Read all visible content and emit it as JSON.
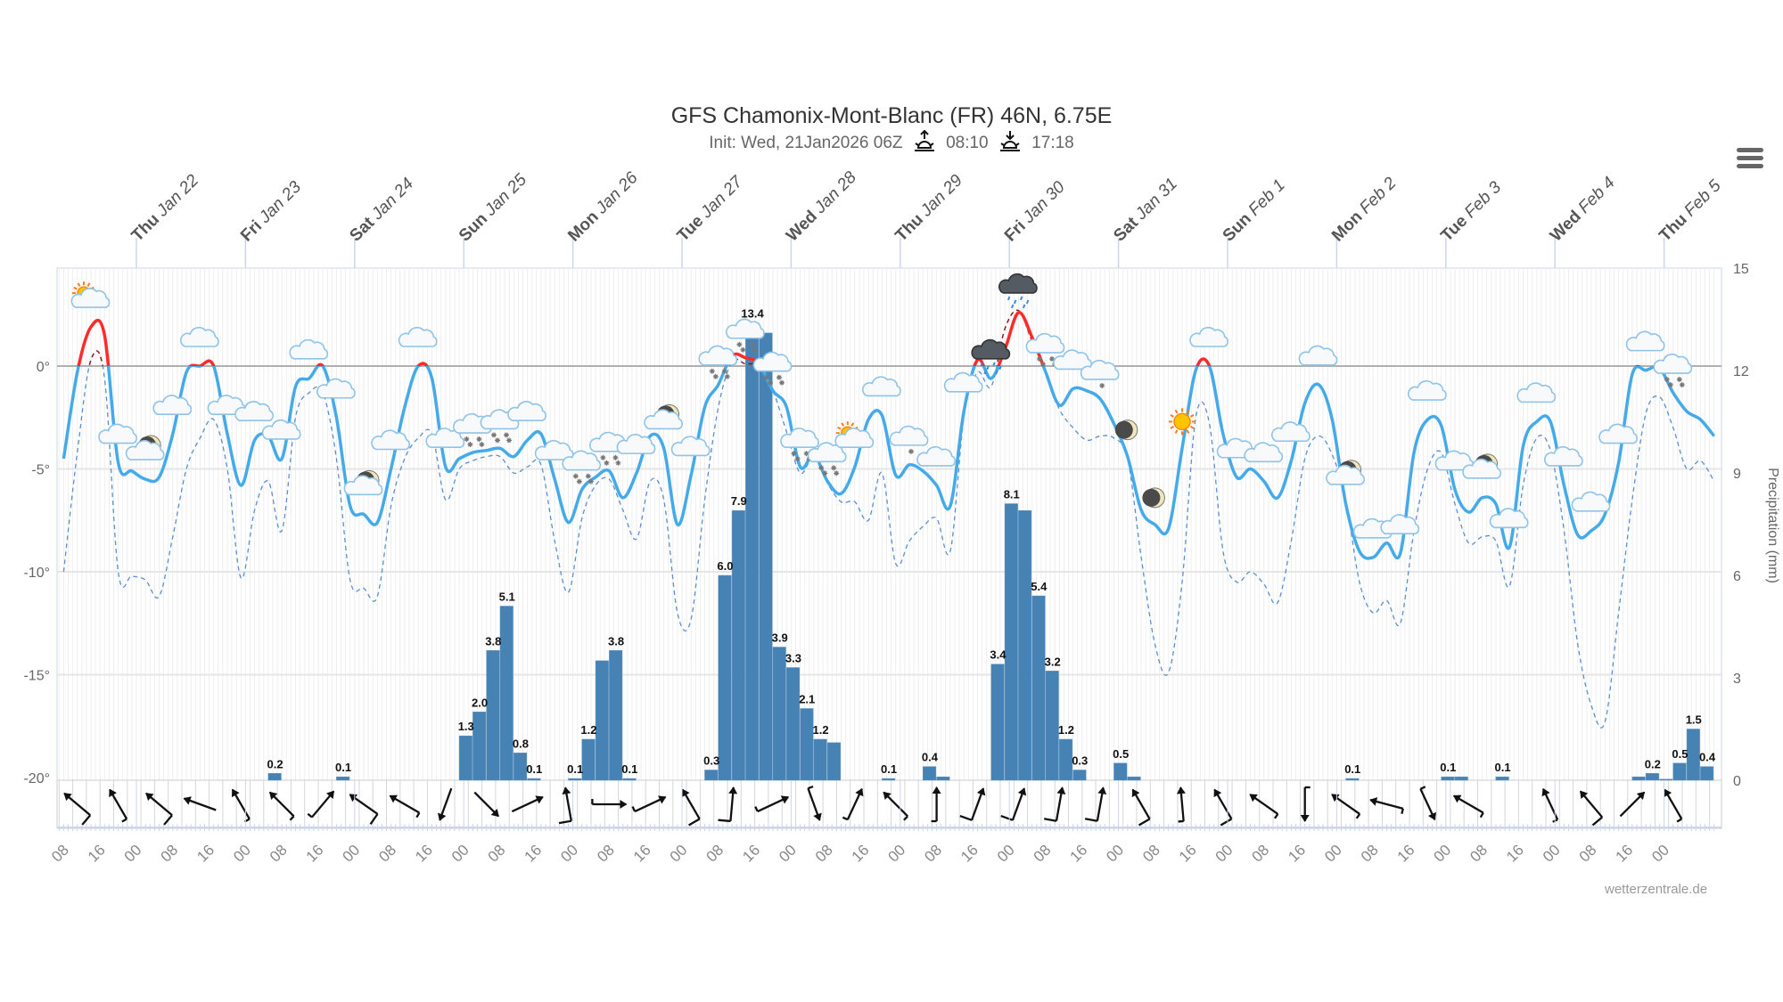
{
  "header": {
    "title": "GFS Chamonix-Mont-Blanc (FR) 46N, 6.75E",
    "init": "Init: Wed, 21Jan2026 06Z",
    "sunrise": "08:10",
    "sunset": "17:18",
    "menu_icon": "hamburger-menu-icon"
  },
  "credit": "wetterzentrale.de",
  "chart_data": {
    "type": "line",
    "title": "GFS Chamonix-Mont-Blanc (FR) 46N, 6.75E",
    "x": {
      "start": "2026-01-21T08:00",
      "step_hours": 3
    },
    "y_left": {
      "ticks": [
        "0°",
        "-5°",
        "-10°",
        "-15°",
        "-20°"
      ],
      "tick_values": [
        0,
        -5,
        -10,
        -15,
        -20
      ],
      "ylim": [
        -20,
        4.7
      ]
    },
    "y_right": {
      "label": "Precipitation (mm)",
      "ticks": [
        "15",
        "12",
        "9",
        "6",
        "3",
        "0"
      ],
      "tick_values": [
        15,
        12,
        9,
        6,
        3,
        0
      ],
      "ylim": [
        0,
        15
      ]
    },
    "grid": true,
    "colors": {
      "temp": "#45aaea",
      "temp_above_zero": "#ff2a2a",
      "dashed": "#5b8fcf",
      "dashed_above_zero": "#8b1a1a",
      "precip": "#4682b4"
    },
    "series": [
      {
        "style": "solid",
        "values": [
          -4.5,
          -0.3,
          1.9,
          1.5,
          -4.7,
          -5.1,
          -5.5,
          -5.4,
          -3.3,
          -0.3,
          0.0,
          0.0,
          -3.3,
          -5.8,
          -3.6,
          -3.4,
          -4.5,
          -1.0,
          -0.6,
          0.0,
          -2.5,
          -6.8,
          -7.2,
          -7.6,
          -5.0,
          -2.0,
          0.0,
          -0.6,
          -4.9,
          -4.5,
          -4.2,
          -4.1,
          -4.0,
          -4.4,
          -3.6,
          -3.3,
          -5.5,
          -7.6,
          -6.0,
          -5.4,
          -5.1,
          -6.4,
          -5.2,
          -3.4,
          -4.0,
          -7.7,
          -5.3,
          -2.0,
          -0.9,
          0.5,
          0.4,
          0.1,
          -1.2,
          -2.0,
          -4.9,
          -4.3,
          -5.6,
          -6.2,
          -4.9,
          -2.6,
          -2.4,
          -5.3,
          -4.8,
          -5.1,
          -5.8,
          -6.8,
          -2.2,
          0.3,
          -0.6,
          0.8,
          2.6,
          1.4,
          -0.3,
          -1.9,
          -1.1,
          -1.2,
          -1.6,
          -2.8,
          -4.4,
          -7.0,
          -7.7,
          -7.9,
          -4.0,
          -0.2,
          0.0,
          -3.3,
          -5.4,
          -5.0,
          -5.6,
          -6.4,
          -4.6,
          -1.8,
          -0.9,
          -2.6,
          -6.7,
          -9.0,
          -9.3,
          -8.6,
          -9.1,
          -4.2,
          -2.6,
          -2.9,
          -6.0,
          -7.1,
          -6.4,
          -6.7,
          -8.8,
          -3.9,
          -2.7,
          -2.7,
          -5.8,
          -8.2,
          -8.0,
          -7.2,
          -4.7,
          -0.4,
          -0.2,
          -0.1,
          -1.3,
          -2.2,
          -2.6,
          -3.4
        ]
      },
      {
        "style": "dashed",
        "values": [
          -10.0,
          -4.2,
          0.3,
          -0.6,
          -10.0,
          -10.2,
          -10.4,
          -11.2,
          -8.3,
          -5.0,
          -3.5,
          -2.6,
          -5.0,
          -10.3,
          -7.0,
          -5.6,
          -8.0,
          -2.5,
          -1.3,
          -1.3,
          -4.5,
          -10.4,
          -10.8,
          -11.2,
          -6.8,
          -4.5,
          -3.5,
          -3.3,
          -6.5,
          -5.0,
          -4.6,
          -4.4,
          -4.4,
          -5.2,
          -4.9,
          -4.8,
          -8.5,
          -11.0,
          -7.4,
          -5.8,
          -5.5,
          -7.0,
          -8.4,
          -5.6,
          -6.5,
          -12.0,
          -12.3,
          -6.5,
          -2.0,
          0.2,
          0.1,
          0.0,
          -1.2,
          -3.2,
          -5.2,
          -4.4,
          -5.7,
          -6.6,
          -6.6,
          -7.5,
          -5.2,
          -9.6,
          -8.5,
          -7.8,
          -7.4,
          -9.0,
          -2.5,
          -0.3,
          -1.0,
          1.8,
          2.7,
          1.2,
          -0.3,
          -2.1,
          -3.0,
          -3.6,
          -3.4,
          -3.5,
          -4.5,
          -9.3,
          -13.5,
          -14.9,
          -10.5,
          -2.5,
          -2.8,
          -9.0,
          -10.5,
          -10.0,
          -10.6,
          -11.5,
          -8.5,
          -4.5,
          -3.4,
          -4.3,
          -6.5,
          -10.5,
          -12.0,
          -11.4,
          -12.5,
          -8.0,
          -5.0,
          -4.2,
          -6.7,
          -8.6,
          -8.3,
          -8.5,
          -10.7,
          -5.8,
          -3.5,
          -4.1,
          -8.0,
          -13.5,
          -16.5,
          -17.3,
          -12.0,
          -6.5,
          -2.3,
          -1.5,
          -3.0,
          -5.0,
          -4.6,
          -5.6
        ]
      }
    ],
    "precipitation": [
      {
        "t": "2026-01-23T05:00",
        "mm": 0.2,
        "label": "0.2"
      },
      {
        "t": "2026-01-23T20:00",
        "mm": 0.1,
        "label": "0.1"
      },
      {
        "t": "2026-01-24T23:00",
        "mm": 1.3,
        "label": "1.3"
      },
      {
        "t": "2026-01-25T02:00",
        "mm": 2.0,
        "label": "2.0"
      },
      {
        "t": "2026-01-25T05:00",
        "mm": 3.8,
        "label": "3.8"
      },
      {
        "t": "2026-01-25T08:00",
        "mm": 5.1,
        "label": "5.1"
      },
      {
        "t": "2026-01-25T11:00",
        "mm": 0.8,
        "label": "0.8"
      },
      {
        "t": "2026-01-25T14:00",
        "mm": 0.05,
        "label": "0.1"
      },
      {
        "t": "2026-01-25T23:00",
        "mm": 0.05,
        "label": "0.1"
      },
      {
        "t": "2026-01-26T02:00",
        "mm": 1.2,
        "label": "1.2"
      },
      {
        "t": "2026-01-26T05:00",
        "mm": 3.5
      },
      {
        "t": "2026-01-26T08:00",
        "mm": 3.8,
        "label": "3.8"
      },
      {
        "t": "2026-01-26T11:00",
        "mm": 0.05,
        "label": "0.1"
      },
      {
        "t": "2026-01-27T05:00",
        "mm": 0.3,
        "label": "0.3"
      },
      {
        "t": "2026-01-27T08:00",
        "mm": 6.0,
        "label": "6.0"
      },
      {
        "t": "2026-01-27T11:00",
        "mm": 7.9,
        "label": "7.9"
      },
      {
        "t": "2026-01-27T14:00",
        "mm": 13.4,
        "label": "13.4"
      },
      {
        "t": "2026-01-27T17:00",
        "mm": 13.1
      },
      {
        "t": "2026-01-27T20:00",
        "mm": 3.9,
        "label": "3.9"
      },
      {
        "t": "2026-01-27T23:00",
        "mm": 3.3,
        "label": "3.3"
      },
      {
        "t": "2026-01-28T02:00",
        "mm": 2.1,
        "label": "2.1"
      },
      {
        "t": "2026-01-28T05:00",
        "mm": 1.2,
        "label": "1.2"
      },
      {
        "t": "2026-01-28T08:00",
        "mm": 1.1
      },
      {
        "t": "2026-01-28T20:00",
        "mm": 0.05,
        "label": "0.1"
      },
      {
        "t": "2026-01-29T05:00",
        "mm": 0.4,
        "label": "0.4"
      },
      {
        "t": "2026-01-29T08:00",
        "mm": 0.1
      },
      {
        "t": "2026-01-29T20:00",
        "mm": 3.4,
        "label": "3.4"
      },
      {
        "t": "2026-01-29T23:00",
        "mm": 8.1,
        "label": "8.1"
      },
      {
        "t": "2026-01-30T02:00",
        "mm": 7.9
      },
      {
        "t": "2026-01-30T05:00",
        "mm": 5.4,
        "label": "5.4"
      },
      {
        "t": "2026-01-30T08:00",
        "mm": 3.2,
        "label": "3.2"
      },
      {
        "t": "2026-01-30T11:00",
        "mm": 1.2,
        "label": "1.2"
      },
      {
        "t": "2026-01-30T14:00",
        "mm": 0.3,
        "label": "0.3"
      },
      {
        "t": "2026-01-30T23:00",
        "mm": 0.5,
        "label": "0.5"
      },
      {
        "t": "2026-01-31T02:00",
        "mm": 0.1
      },
      {
        "t": "2026-02-02T02:00",
        "mm": 0.05,
        "label": "0.1"
      },
      {
        "t": "2026-02-02T23:00",
        "mm": 0.1,
        "label": "0.1"
      },
      {
        "t": "2026-02-03T02:00",
        "mm": 0.1
      },
      {
        "t": "2026-02-03T11:00",
        "mm": 0.1,
        "label": "0.1"
      },
      {
        "t": "2026-02-04T17:00",
        "mm": 0.1
      },
      {
        "t": "2026-02-04T20:00",
        "mm": 0.2,
        "label": "0.2"
      },
      {
        "t": "2026-02-04T23:00",
        "mm": 0.03
      },
      {
        "t": "2026-02-05T02:00",
        "mm": 0.5,
        "label": "0.5"
      },
      {
        "t": "2026-02-05T05:00",
        "mm": 1.5,
        "label": "1.5"
      },
      {
        "t": "2026-02-05T08:00",
        "mm": 0.4,
        "label": "0.4"
      }
    ],
    "weather_icons": {
      "start": "2026-01-21T14:00",
      "step_hours": 6,
      "types": [
        "partly-cloudy-day",
        "cloudy",
        "partly-cloudy-night",
        "cloudy",
        "cloudy",
        "cloudy",
        "cloudy",
        "cloudy",
        "cloudy",
        "cloudy",
        "partly-cloudy-night",
        "cloudy",
        "cloudy",
        "cloudy",
        "snow",
        "snow",
        "cloudy",
        "cloudy",
        "snow",
        "snow",
        "cloudy",
        "partly-cloudy-night",
        "cloudy",
        "snow",
        "snow",
        "snow",
        "snow",
        "snow",
        "partly-cloudy-day",
        "cloudy",
        "light-snow",
        "cloudy",
        "cloudy",
        "rain",
        "rain",
        "snow",
        "cloudy",
        "light-snow",
        "clear-night",
        "clear-night",
        "clear-day",
        "cloudy",
        "cloudy",
        "cloudy",
        "cloudy",
        "cloudy",
        "partly-cloudy-night",
        "cloudy",
        "cloudy",
        "cloudy",
        "cloudy",
        "partly-cloudy-night",
        "cloudy",
        "cloudy",
        "cloudy",
        "cloudy",
        "cloudy",
        "cloudy",
        "snow"
      ]
    },
    "wind": {
      "start": "2026-01-21T11:00",
      "step_hours": 9,
      "arrows": [
        [
          310,
          2
        ],
        [
          330,
          1
        ],
        [
          310,
          2
        ],
        [
          290,
          0
        ],
        [
          330,
          1
        ],
        [
          315,
          1
        ],
        [
          40,
          1
        ],
        [
          305,
          2
        ],
        [
          300,
          1
        ],
        [
          200,
          0
        ],
        [
          135,
          0
        ],
        [
          65,
          0
        ],
        [
          350,
          2
        ],
        [
          90,
          1
        ],
        [
          65,
          1
        ],
        [
          330,
          2
        ],
        [
          5,
          2
        ],
        [
          65,
          1
        ],
        [
          160,
          1
        ],
        [
          25,
          1
        ],
        [
          315,
          1
        ],
        [
          0,
          1
        ],
        [
          20,
          2
        ],
        [
          20,
          2
        ],
        [
          10,
          2
        ],
        [
          10,
          2
        ],
        [
          330,
          2
        ],
        [
          355,
          1
        ],
        [
          330,
          2
        ],
        [
          305,
          1
        ],
        [
          180,
          1
        ],
        [
          305,
          1
        ],
        [
          285,
          1
        ],
        [
          155,
          1
        ],
        [
          300,
          1
        ],
        null,
        [
          335,
          1
        ],
        [
          320,
          2
        ],
        [
          45,
          0
        ],
        [
          330,
          1
        ]
      ]
    },
    "day_labels": [
      {
        "dow": "Thu",
        "date": "Jan 22",
        "t": "2026-01-22T00:00"
      },
      {
        "dow": "Fri",
        "date": "Jan 23",
        "t": "2026-01-23T00:00"
      },
      {
        "dow": "Sat",
        "date": "Jan 24",
        "t": "2026-01-24T00:00"
      },
      {
        "dow": "Sun",
        "date": "Jan 25",
        "t": "2026-01-25T00:00"
      },
      {
        "dow": "Mon",
        "date": "Jan 26",
        "t": "2026-01-26T00:00"
      },
      {
        "dow": "Tue",
        "date": "Jan 27",
        "t": "2026-01-27T00:00"
      },
      {
        "dow": "Wed",
        "date": "Jan 28",
        "t": "2026-01-28T00:00"
      },
      {
        "dow": "Thu",
        "date": "Jan 29",
        "t": "2026-01-29T00:00"
      },
      {
        "dow": "Fri",
        "date": "Jan 30",
        "t": "2026-01-30T00:00"
      },
      {
        "dow": "Sat",
        "date": "Jan 31",
        "t": "2026-01-31T00:00"
      },
      {
        "dow": "Sun",
        "date": "Feb 1",
        "t": "2026-02-01T00:00"
      },
      {
        "dow": "Mon",
        "date": "Feb 2",
        "t": "2026-02-02T00:00"
      },
      {
        "dow": "Tue",
        "date": "Feb 3",
        "t": "2026-02-03T00:00"
      },
      {
        "dow": "Wed",
        "date": "Feb 4",
        "t": "2026-02-04T00:00"
      },
      {
        "dow": "Thu",
        "date": "Feb 5",
        "t": "2026-02-05T00:00"
      }
    ],
    "hour_labels": {
      "start": "2026-01-21T08:00",
      "step_hours": 8,
      "labels": [
        "08",
        "16",
        "00",
        "08",
        "16",
        "00",
        "08",
        "16",
        "00",
        "08",
        "16",
        "00",
        "08",
        "16",
        "00",
        "08",
        "16",
        "00",
        "08",
        "16",
        "00",
        "08",
        "16",
        "00",
        "08",
        "16",
        "00",
        "08",
        "16",
        "00",
        "08",
        "16",
        "00",
        "08",
        "16",
        "00",
        "08",
        "16",
        "00",
        "08",
        "16",
        "00",
        "08",
        "16",
        "00"
      ]
    }
  }
}
